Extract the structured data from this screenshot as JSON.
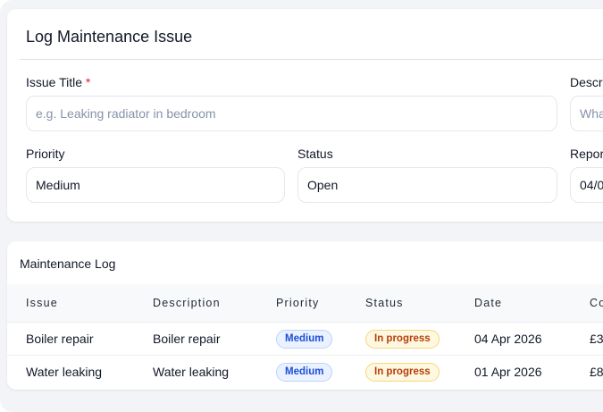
{
  "form": {
    "title": "Log Maintenance Issue",
    "issue_title_label": "Issue Title",
    "required_marker": "*",
    "issue_title_placeholder": "e.g. Leaking radiator in bedroom",
    "description_label": "Descr",
    "description_placeholder": "Wha",
    "priority_label": "Priority",
    "priority_value": "Medium",
    "status_label": "Status",
    "status_value": "Open",
    "reported_label": "Repor",
    "reported_value": "04/0"
  },
  "log": {
    "title": "Maintenance Log",
    "columns": [
      "Issue",
      "Description",
      "Priority",
      "Status",
      "Date",
      "Co"
    ],
    "rows": [
      {
        "issue": "Boiler repair",
        "description": "Boiler repair",
        "priority": "Medium",
        "status": "In progress",
        "date": "04 Apr 2026",
        "cost": "£3"
      },
      {
        "issue": "Water leaking",
        "description": "Water leaking",
        "priority": "Medium",
        "status": "In progress",
        "date": "01 Apr 2026",
        "cost": "£8"
      }
    ]
  },
  "colors": {
    "required": "#e11d2e",
    "priority_badge": "#1d4ed8",
    "status_badge": "#b4400b"
  }
}
